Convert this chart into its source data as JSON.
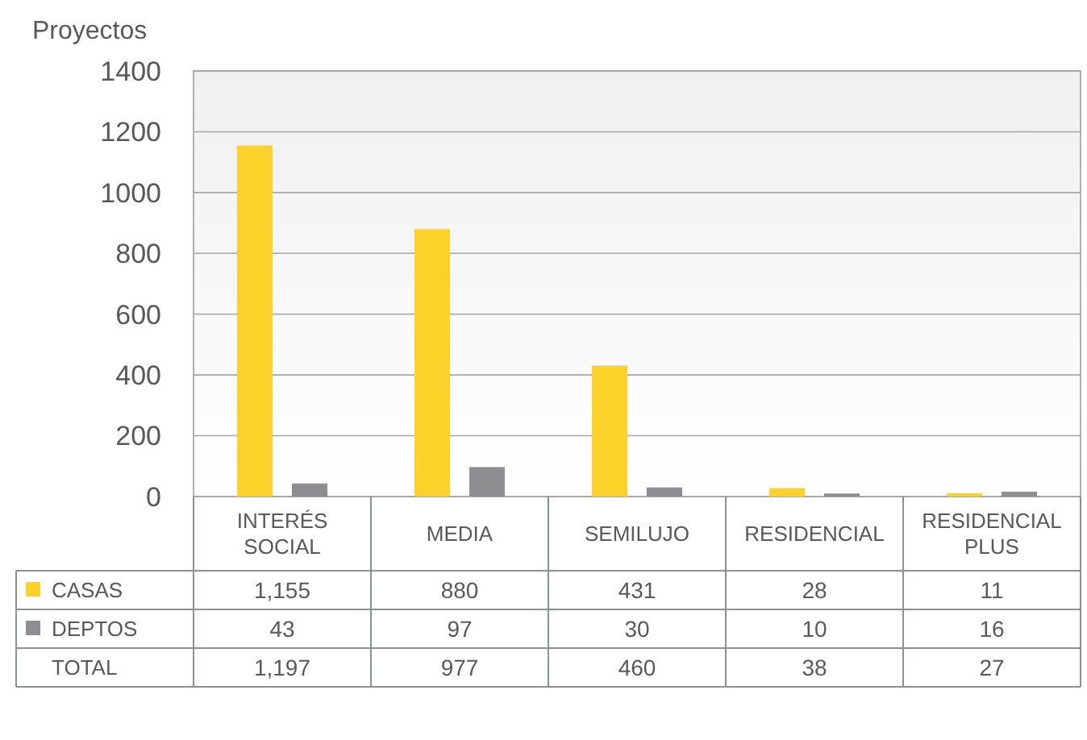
{
  "chart_data": {
    "type": "bar",
    "ylabel": "Proyectos",
    "categories": [
      "INTERÉS SOCIAL",
      "MEDIA",
      "SEMILUJO",
      "RESIDENCIAL",
      "RESIDENCIAL PLUS"
    ],
    "series": [
      {
        "name": "CASAS",
        "color": "#fcd22a",
        "values": [
          1155,
          880,
          431,
          28,
          11
        ],
        "value_labels": [
          "1,155",
          "880",
          "431",
          "28",
          "11"
        ]
      },
      {
        "name": "DEPTOS",
        "color": "#8e8e91",
        "values": [
          43,
          97,
          30,
          10,
          16
        ],
        "value_labels": [
          "43",
          "97",
          "30",
          "10",
          "16"
        ]
      }
    ],
    "annotations": [
      "TOTAL",
      "1,197",
      "977",
      "460",
      "38",
      "27"
    ],
    "ylim": [
      0,
      1400
    ],
    "yticks": [
      0,
      200,
      400,
      600,
      800,
      1000,
      1200,
      1400
    ],
    "grid": "y",
    "legend": "bottom"
  }
}
